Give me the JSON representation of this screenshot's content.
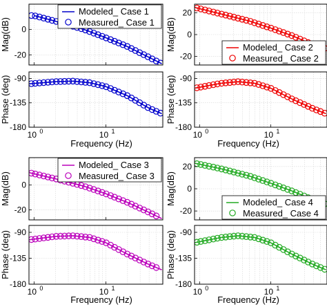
{
  "chart_data": [
    {
      "type": "line",
      "case": "Case 1",
      "color": "#0000cc",
      "mag": {
        "ylabel": "Mag(dB)",
        "ylim": [
          -28,
          20
        ],
        "yticks": [
          "0",
          "-20"
        ],
        "ytick_values": [
          0,
          -20
        ],
        "modeled": [
          [
            1,
            11.0
          ],
          [
            2,
            6.5
          ],
          [
            5,
            0.0
          ],
          [
            10,
            -6.5
          ],
          [
            20,
            -13.5
          ],
          [
            40,
            -22.0
          ],
          [
            60,
            -27.0
          ]
        ],
        "measured_x": [
          0.92,
          1.04,
          1.19,
          1.36,
          1.56,
          1.78,
          2.04,
          2.33,
          2.66,
          3.04,
          3.47,
          3.97,
          4.54,
          5.19,
          5.93,
          6.78,
          7.75,
          8.86,
          10.1,
          11.6,
          13.2,
          15.1,
          17.3,
          19.8,
          22.6,
          25.8,
          29.5,
          33.7,
          38.5,
          44.0,
          50.3,
          57.5
        ]
      },
      "phase": {
        "ylabel": "Phase (deg)",
        "ylim": [
          -180,
          -78
        ],
        "yticks": [
          "-90",
          "-135",
          "-180"
        ],
        "ytick_values": [
          -90,
          -135,
          -180
        ],
        "modeled": [
          [
            0.85,
            -100.0
          ],
          [
            2,
            -96.0
          ],
          [
            3.5,
            -95.0
          ],
          [
            6,
            -98.0
          ],
          [
            10,
            -105.0
          ],
          [
            20,
            -122.0
          ],
          [
            40,
            -145.0
          ],
          [
            60,
            -155.0
          ]
        ],
        "measured_x": [
          0.92,
          1.04,
          1.19,
          1.36,
          1.56,
          1.78,
          2.04,
          2.33,
          2.66,
          3.04,
          3.47,
          3.97,
          4.54,
          5.19,
          5.93,
          6.78,
          7.75,
          8.86,
          10.1,
          11.6,
          13.2,
          15.1,
          17.3,
          19.8,
          22.6,
          25.8,
          29.5,
          33.7,
          38.5,
          44.0,
          50.3,
          57.5
        ]
      },
      "xlabel": "Frequency (Hz)",
      "xticks": [
        "10",
        "10"
      ],
      "xtick_exps": [
        "0",
        "1"
      ],
      "xtick_values": [
        1,
        10
      ],
      "xlim": [
        0.85,
        62
      ],
      "legend": [
        "Modeled_ Case 1",
        "Measured_ Case 1"
      ],
      "legend_position": "top-right"
    },
    {
      "type": "line",
      "case": "Case 2",
      "color": "#ee0000",
      "mag": {
        "ylabel": "Mag(dB)",
        "ylim": [
          -28,
          28
        ],
        "yticks": [
          "20",
          "0",
          "-20"
        ],
        "ytick_values": [
          20,
          0,
          -20
        ],
        "modeled": [
          [
            0.85,
            25.0
          ],
          [
            2,
            19.0
          ],
          [
            5,
            12.5
          ],
          [
            10,
            6.0
          ],
          [
            20,
            -1.0
          ],
          [
            40,
            -9.5
          ],
          [
            60,
            -13.0
          ]
        ],
        "measured_x": [
          0.92,
          1.04,
          1.19,
          1.36,
          1.56,
          1.78,
          2.04,
          2.33,
          2.66,
          3.04,
          3.47,
          3.97,
          4.54,
          5.19,
          5.93,
          6.78,
          7.75,
          8.86,
          10.1,
          11.6,
          13.2,
          15.1,
          17.3,
          19.8,
          22.6,
          25.8,
          29.5,
          33.7,
          38.5,
          44.0,
          50.3,
          57.5
        ]
      },
      "phase": {
        "ylabel": "Phase (deg)",
        "ylim": [
          -180,
          -78
        ],
        "yticks": [
          "-90",
          "-135",
          "-180"
        ],
        "ytick_values": [
          -90,
          -135,
          -180
        ],
        "modeled": [
          [
            0.85,
            -108.0
          ],
          [
            2,
            -99.0
          ],
          [
            3.5,
            -96.0
          ],
          [
            6,
            -99.0
          ],
          [
            10,
            -108.0
          ],
          [
            20,
            -128.0
          ],
          [
            40,
            -146.0
          ],
          [
            60,
            -155.0
          ]
        ],
        "measured_x": [
          0.92,
          1.04,
          1.19,
          1.36,
          1.56,
          1.78,
          2.04,
          2.33,
          2.66,
          3.04,
          3.47,
          3.97,
          4.54,
          5.19,
          5.93,
          6.78,
          7.75,
          8.86,
          10.1,
          11.6,
          13.2,
          15.1,
          17.3,
          19.8,
          22.6,
          25.8,
          29.5,
          33.7,
          38.5,
          44.0,
          50.3,
          57.5
        ]
      },
      "xlabel": "Frequency (Hz)",
      "xticks": [
        "10",
        "10"
      ],
      "xtick_exps": [
        "0",
        "1"
      ],
      "xtick_values": [
        1,
        10
      ],
      "xlim": [
        0.85,
        62
      ],
      "legend": [
        "Modeled_ Case 2",
        "Measured_ Case 2"
      ],
      "legend_position": "bottom-right"
    },
    {
      "type": "line",
      "case": "Case 3",
      "color": "#bb00bb",
      "mag": {
        "ylabel": "Mag(dB)",
        "ylim": [
          -28,
          22
        ],
        "yticks": [
          "0",
          "-20"
        ],
        "ytick_values": [
          0,
          -20
        ],
        "modeled": [
          [
            0.85,
            10.0
          ],
          [
            2,
            5.0
          ],
          [
            5,
            -1.0
          ],
          [
            10,
            -7.0
          ],
          [
            20,
            -14.0
          ],
          [
            40,
            -22.0
          ],
          [
            60,
            -27.0
          ]
        ],
        "measured_x": [
          0.92,
          1.04,
          1.19,
          1.36,
          1.56,
          1.78,
          2.04,
          2.33,
          2.66,
          3.04,
          3.47,
          3.97,
          4.54,
          5.19,
          5.93,
          6.78,
          7.75,
          8.86,
          10.1,
          11.6,
          13.2,
          15.1,
          17.3,
          19.8,
          22.6,
          25.8,
          29.5,
          33.7,
          38.5,
          44.0,
          50.3
        ]
      },
      "phase": {
        "ylabel": "Phase (deg)",
        "ylim": [
          -180,
          -78
        ],
        "yticks": [
          "-90",
          "-135",
          "-180"
        ],
        "ytick_values": [
          -90,
          -135,
          -180
        ],
        "modeled": [
          [
            0.85,
            -103.0
          ],
          [
            2,
            -97.0
          ],
          [
            3.5,
            -96.0
          ],
          [
            6,
            -99.0
          ],
          [
            10,
            -108.0
          ],
          [
            20,
            -128.0
          ],
          [
            40,
            -146.0
          ],
          [
            60,
            -155.0
          ]
        ],
        "measured_x": [
          0.92,
          1.04,
          1.19,
          1.36,
          1.56,
          1.78,
          2.04,
          2.33,
          2.66,
          3.04,
          3.47,
          3.97,
          4.54,
          5.19,
          5.93,
          6.78,
          7.75,
          8.86,
          10.1,
          11.6,
          13.2,
          15.1,
          17.3,
          19.8,
          22.6,
          25.8,
          29.5,
          33.7,
          38.5,
          44.0,
          50.3
        ]
      },
      "xlabel": "Frequency (Hz)",
      "xticks": [
        "10",
        "10"
      ],
      "xtick_exps": [
        "0",
        "1"
      ],
      "xtick_values": [
        1,
        10
      ],
      "xlim": [
        0.85,
        62
      ],
      "legend": [
        "Modeled_ Case 3",
        "Measured_ Case 3"
      ],
      "legend_position": "top-right"
    },
    {
      "type": "line",
      "case": "Case 4",
      "color": "#22aa22",
      "mag": {
        "ylabel": "Mag(dB)",
        "ylim": [
          -28,
          28
        ],
        "yticks": [
          "20",
          "0",
          "-20"
        ],
        "ytick_values": [
          20,
          0,
          -20
        ],
        "modeled": [
          [
            0.85,
            23.0
          ],
          [
            2,
            18.0
          ],
          [
            5,
            11.5
          ],
          [
            10,
            5.0
          ],
          [
            20,
            -2.0
          ],
          [
            40,
            -10.0
          ],
          [
            60,
            -14.0
          ]
        ],
        "measured_x": [
          0.92,
          1.04,
          1.19,
          1.36,
          1.56,
          1.78,
          2.04,
          2.33,
          2.66,
          3.04,
          3.47,
          3.97,
          4.54,
          5.19,
          5.93,
          6.78,
          7.75,
          8.86,
          10.1,
          11.6,
          13.2,
          15.1,
          17.3,
          19.8,
          22.6,
          25.8,
          29.5,
          33.7,
          38.5,
          44.0,
          50.3,
          57.5
        ]
      },
      "phase": {
        "ylabel": "Phase (deg)",
        "ylim": [
          -180,
          -78
        ],
        "yticks": [
          "-90",
          "-135",
          "-180"
        ],
        "ytick_values": [
          -90,
          -135,
          -180
        ],
        "modeled": [
          [
            0.85,
            -108.0
          ],
          [
            2,
            -99.0
          ],
          [
            3.5,
            -96.0
          ],
          [
            6,
            -99.0
          ],
          [
            10,
            -108.0
          ],
          [
            20,
            -128.0
          ],
          [
            40,
            -146.0
          ],
          [
            60,
            -155.0
          ]
        ],
        "measured_x": [
          0.92,
          1.04,
          1.19,
          1.36,
          1.56,
          1.78,
          2.04,
          2.33,
          2.66,
          3.04,
          3.47,
          3.97,
          4.54,
          5.19,
          5.93,
          6.78,
          7.75,
          8.86,
          10.1,
          11.6,
          13.2,
          15.1,
          17.3,
          19.8,
          22.6,
          25.8,
          29.5,
          33.7,
          38.5,
          44.0,
          50.3,
          57.5
        ]
      },
      "xlabel": "Frequency (Hz)",
      "xticks": [
        "10",
        "10"
      ],
      "xtick_exps": [
        "0",
        "1"
      ],
      "xtick_values": [
        1,
        10
      ],
      "xlim": [
        0.85,
        62
      ],
      "legend": [
        "Modeled_ Case 4",
        "Measured_ Case 4"
      ],
      "legend_position": "bottom-right"
    }
  ]
}
